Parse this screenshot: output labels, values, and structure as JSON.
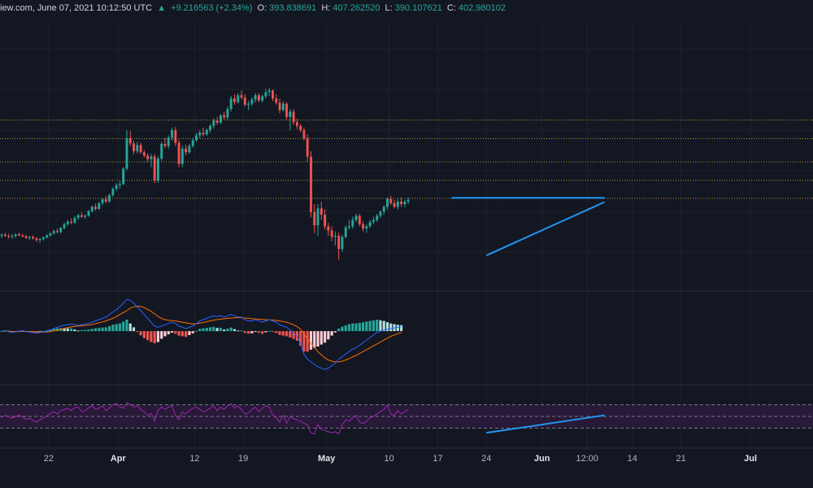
{
  "header": {
    "source": "iew.com, June 07, 2021 10:12:50 UTC",
    "change_prefix": "▲",
    "change": "+9.216563 (+2.34%)",
    "open_label": "O:",
    "open": "393.838691",
    "high_label": "H:",
    "high": "407.262520",
    "low_label": "L:",
    "low": "390.107621",
    "close_label": "C:",
    "close": "402.980102"
  },
  "colors": {
    "background": "#131722",
    "up": "#26a69a",
    "down": "#ef5350",
    "macd_line": "#2962ff",
    "signal_line": "#ff6d00",
    "rsi_line": "#9c27b0",
    "trend_line": "#2196f3",
    "level_line": "#b39a3a",
    "rsi_band": "#2a1a3a"
  },
  "chart_data": {
    "type": "candlestick",
    "title": "",
    "xlabel": "",
    "ylabel": "",
    "x_ticks": [
      {
        "label": "22",
        "date": "2021-03-22"
      },
      {
        "label": "Apr",
        "date": "2021-04-01",
        "bold": true
      },
      {
        "label": "12",
        "date": "2021-04-12"
      },
      {
        "label": "19",
        "date": "2021-04-19"
      },
      {
        "label": "May",
        "date": "2021-05-01",
        "bold": true
      },
      {
        "label": "10",
        "date": "2021-05-10"
      },
      {
        "label": "17",
        "date": "2021-05-17"
      },
      {
        "label": "24",
        "date": "2021-05-24"
      },
      {
        "label": "Jun",
        "date": "2021-06-01",
        "bold": true
      },
      {
        "label": "12:00",
        "date": "2021-06-07T12:00"
      },
      {
        "label": "14",
        "date": "2021-06-14"
      },
      {
        "label": "21",
        "date": "2021-06-21"
      },
      {
        "label": "Jul",
        "date": "2021-07-01",
        "bold": true
      }
    ],
    "x_range": [
      "2021-03-15",
      "2021-07-10"
    ],
    "price_range": [
      200,
      700
    ],
    "price_series": [
      [
        300,
        305,
        296,
        302
      ],
      [
        302,
        306,
        298,
        300
      ],
      [
        300,
        304,
        295,
        299
      ],
      [
        299,
        303,
        294,
        300
      ],
      [
        300,
        305,
        296,
        303
      ],
      [
        303,
        306,
        299,
        301
      ],
      [
        301,
        304,
        297,
        299
      ],
      [
        299,
        302,
        294,
        296
      ],
      [
        296,
        300,
        292,
        298
      ],
      [
        298,
        301,
        293,
        295
      ],
      [
        295,
        298,
        289,
        292
      ],
      [
        292,
        296,
        287,
        294
      ],
      [
        294,
        299,
        291,
        297
      ],
      [
        297,
        303,
        295,
        301
      ],
      [
        301,
        307,
        298,
        305
      ],
      [
        305,
        312,
        302,
        309
      ],
      [
        309,
        314,
        305,
        307
      ],
      [
        307,
        317,
        305,
        315
      ],
      [
        315,
        325,
        312,
        322
      ],
      [
        322,
        330,
        319,
        327
      ],
      [
        327,
        333,
        322,
        325
      ],
      [
        325,
        337,
        323,
        334
      ],
      [
        334,
        342,
        330,
        339
      ],
      [
        339,
        345,
        334,
        336
      ],
      [
        336,
        341,
        332,
        338
      ],
      [
        338,
        349,
        336,
        347
      ],
      [
        347,
        358,
        344,
        355
      ],
      [
        355,
        361,
        348,
        351
      ],
      [
        351,
        364,
        349,
        362
      ],
      [
        362,
        372,
        358,
        369
      ],
      [
        369,
        375,
        362,
        365
      ],
      [
        365,
        380,
        363,
        377
      ],
      [
        377,
        392,
        374,
        389
      ],
      [
        389,
        400,
        385,
        396
      ],
      [
        396,
        403,
        390,
        398
      ],
      [
        398,
        430,
        396,
        427
      ],
      [
        427,
        500,
        424,
        485
      ],
      [
        485,
        498,
        470,
        475
      ],
      [
        475,
        480,
        455,
        460
      ],
      [
        460,
        478,
        456,
        472
      ],
      [
        472,
        476,
        455,
        458
      ],
      [
        458,
        462,
        448,
        452
      ],
      [
        452,
        456,
        440,
        445
      ],
      [
        445,
        455,
        430,
        450
      ],
      [
        450,
        455,
        400,
        405
      ],
      [
        405,
        450,
        400,
        446
      ],
      [
        446,
        478,
        442,
        474
      ],
      [
        474,
        485,
        466,
        470
      ],
      [
        470,
        490,
        465,
        486
      ],
      [
        486,
        505,
        480,
        500
      ],
      [
        500,
        506,
        470,
        476
      ],
      [
        476,
        482,
        430,
        436
      ],
      [
        436,
        470,
        430,
        465
      ],
      [
        465,
        472,
        452,
        458
      ],
      [
        458,
        474,
        455,
        470
      ],
      [
        470,
        485,
        467,
        481
      ],
      [
        481,
        495,
        478,
        490
      ],
      [
        490,
        500,
        484,
        495
      ],
      [
        495,
        505,
        488,
        492
      ],
      [
        492,
        503,
        489,
        500
      ],
      [
        500,
        512,
        495,
        508
      ],
      [
        508,
        522,
        503,
        518
      ],
      [
        518,
        525,
        510,
        514
      ],
      [
        514,
        530,
        512,
        528
      ],
      [
        528,
        535,
        520,
        524
      ],
      [
        524,
        545,
        520,
        540
      ],
      [
        540,
        565,
        535,
        560
      ],
      [
        560,
        568,
        548,
        553
      ],
      [
        553,
        570,
        550,
        566
      ],
      [
        566,
        575,
        558,
        562
      ],
      [
        562,
        568,
        545,
        548
      ],
      [
        548,
        555,
        538,
        550
      ],
      [
        550,
        562,
        546,
        558
      ],
      [
        558,
        570,
        552,
        566
      ],
      [
        566,
        570,
        553,
        556
      ],
      [
        556,
        568,
        552,
        564
      ],
      [
        564,
        578,
        560,
        572
      ],
      [
        572,
        580,
        565,
        575
      ],
      [
        575,
        577,
        555,
        560
      ],
      [
        560,
        568,
        548,
        552
      ],
      [
        552,
        560,
        532,
        538
      ],
      [
        538,
        555,
        535,
        550
      ],
      [
        550,
        553,
        520,
        525
      ],
      [
        525,
        540,
        500,
        535
      ],
      [
        535,
        540,
        510,
        515
      ],
      [
        515,
        522,
        502,
        508
      ],
      [
        508,
        512,
        496,
        500
      ],
      [
        500,
        505,
        480,
        485
      ],
      [
        485,
        492,
        440,
        450
      ],
      [
        450,
        460,
        335,
        345
      ],
      [
        345,
        360,
        305,
        320
      ],
      [
        320,
        360,
        300,
        352
      ],
      [
        352,
        365,
        330,
        340
      ],
      [
        340,
        350,
        312,
        318
      ],
      [
        318,
        325,
        300,
        310
      ],
      [
        310,
        318,
        290,
        298
      ],
      [
        298,
        308,
        282,
        300
      ],
      [
        300,
        306,
        255,
        275
      ],
      [
        275,
        302,
        270,
        298
      ],
      [
        298,
        320,
        295,
        316
      ],
      [
        316,
        330,
        312,
        318
      ],
      [
        318,
        336,
        314,
        330
      ],
      [
        330,
        342,
        326,
        338
      ],
      [
        338,
        342,
        318,
        322
      ],
      [
        322,
        328,
        308,
        314
      ],
      [
        314,
        322,
        306,
        318
      ],
      [
        318,
        330,
        315,
        326
      ],
      [
        326,
        336,
        322,
        330
      ],
      [
        330,
        342,
        326,
        338
      ],
      [
        338,
        348,
        334,
        346
      ],
      [
        346,
        358,
        340,
        355
      ],
      [
        355,
        372,
        350,
        370
      ],
      [
        370,
        376,
        358,
        362
      ],
      [
        362,
        368,
        352,
        355
      ],
      [
        355,
        370,
        350,
        365
      ],
      [
        365,
        372,
        355,
        360
      ],
      [
        360,
        368,
        354,
        365
      ],
      [
        365,
        372,
        360,
        368
      ]
    ],
    "resistance_line": {
      "from": [
        "2021-05-19",
        372
      ],
      "to": [
        "2021-06-10",
        372
      ]
    },
    "support_trend_line": {
      "from": [
        "2021-05-24",
        263
      ],
      "to": [
        "2021-06-10",
        364
      ]
    },
    "level_lines": [
      519,
      484,
      440,
      405,
      371
    ],
    "macd": {
      "range": [
        -40,
        30
      ],
      "macd_values": [
        0,
        0.5,
        -0.5,
        -1,
        -0.5,
        0,
        0.5,
        -0.2,
        -0.8,
        -1.2,
        -1.5,
        -1,
        -0.5,
        0,
        1,
        2,
        3,
        4,
        4.5,
        5,
        5.5,
        5,
        4.5,
        5,
        5.5,
        6,
        7,
        8,
        9,
        10,
        11,
        13,
        15,
        17,
        19,
        22,
        25,
        24,
        22,
        19,
        16,
        13,
        10,
        7,
        4,
        3,
        4,
        5,
        6,
        7,
        6,
        4,
        3,
        2,
        3,
        4,
        6,
        8,
        9,
        10,
        11,
        12,
        11.5,
        12,
        11,
        12,
        13,
        12,
        11,
        11,
        9,
        8,
        8,
        9,
        8,
        7,
        8,
        9,
        8,
        7,
        5,
        4,
        3,
        1,
        -1,
        -4,
        -10,
        -18,
        -22,
        -24,
        -26,
        -28,
        -29,
        -30,
        -29,
        -27,
        -25,
        -22,
        -20,
        -18,
        -16,
        -14,
        -13,
        -11,
        -9,
        -7,
        -5,
        -3,
        -1,
        0,
        1,
        1.5,
        2,
        2.5,
        3,
        3.5
      ],
      "signal_values": [
        0,
        0.2,
        0,
        -0.3,
        -0.4,
        -0.3,
        -0.1,
        -0.2,
        -0.3,
        -0.5,
        -0.7,
        -0.8,
        -0.7,
        -0.6,
        -0.3,
        0.2,
        0.8,
        1.5,
        2.2,
        2.8,
        3.3,
        3.7,
        4,
        4.2,
        4.5,
        4.8,
        5.2,
        5.8,
        6.5,
        7.2,
        8,
        9,
        10,
        11.5,
        13,
        14.5,
        16,
        18,
        19,
        19.5,
        19.3,
        18.5,
        17,
        15.5,
        13.5,
        11.5,
        10,
        9,
        8.5,
        8.2,
        8,
        7.5,
        7,
        6.5,
        6,
        5.7,
        5.8,
        6.2,
        6.8,
        7.4,
        8,
        8.6,
        9,
        9.4,
        9.7,
        10,
        10.2,
        10.4,
        10.5,
        10.5,
        10.3,
        10,
        9.7,
        9.5,
        9.3,
        9.1,
        8.9,
        8.8,
        8.6,
        8.4,
        8,
        7.5,
        7,
        6,
        5,
        3.5,
        1.5,
        -2,
        -6,
        -9.5,
        -13,
        -16,
        -18.5,
        -21,
        -22.5,
        -23.5,
        -24,
        -24,
        -23.5,
        -22.5,
        -21.5,
        -20,
        -19,
        -17.5,
        -16,
        -14.5,
        -13,
        -11.5,
        -10,
        -8.5,
        -7,
        -5.5,
        -4,
        -3,
        -2,
        -1.2
      ]
    },
    "rsi": {
      "range": [
        0,
        100
      ],
      "levels": [
        70,
        50,
        30
      ],
      "values": [
        48,
        52,
        49,
        47,
        50,
        52,
        49,
        45,
        47,
        43,
        40,
        44,
        47,
        51,
        55,
        58,
        54,
        60,
        62,
        64,
        60,
        65,
        66,
        58,
        60,
        65,
        68,
        62,
        64,
        68,
        60,
        64,
        70,
        72,
        66,
        64,
        74,
        70,
        66,
        68,
        62,
        58,
        52,
        55,
        42,
        60,
        66,
        62,
        66,
        68,
        52,
        44,
        58,
        54,
        60,
        64,
        66,
        62,
        58,
        60,
        64,
        68,
        60,
        66,
        62,
        68,
        72,
        64,
        68,
        62,
        54,
        56,
        62,
        66,
        58,
        64,
        68,
        66,
        52,
        48,
        40,
        52,
        38,
        50,
        46,
        44,
        42,
        38,
        36,
        22,
        20,
        36,
        28,
        26,
        24,
        22,
        24,
        20,
        36,
        44,
        42,
        48,
        52,
        40,
        38,
        42,
        48,
        50,
        54,
        58,
        62,
        70,
        54,
        52,
        60,
        54,
        58,
        62
      ]
    },
    "rsi_trend_line": {
      "from": [
        "2021-05-24",
        22
      ],
      "to": [
        "2021-06-10",
        52
      ]
    }
  }
}
